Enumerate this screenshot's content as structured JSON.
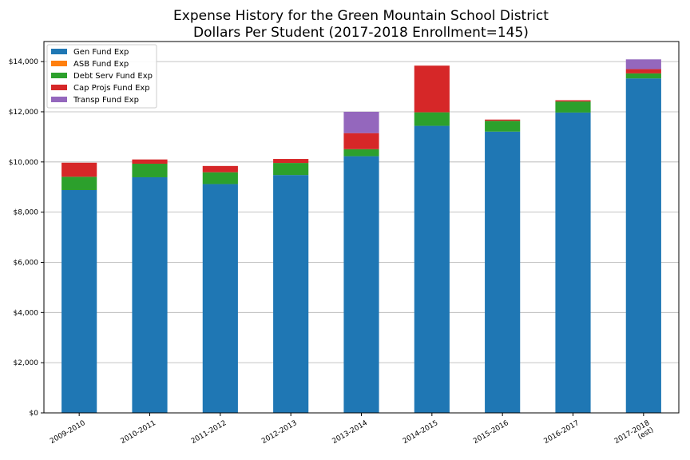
{
  "chart_data": {
    "type": "bar",
    "stacked": true,
    "title_lines": [
      "Expense History for the Green Mountain School District",
      "Dollars Per Student (2017-2018 Enrollment=145)"
    ],
    "categories": [
      [
        "2009-2010"
      ],
      [
        "2010-2011"
      ],
      [
        "2011-2012"
      ],
      [
        "2012-2013"
      ],
      [
        "2013-2014"
      ],
      [
        "2014-2015"
      ],
      [
        "2015-2016"
      ],
      [
        "2016-2017"
      ],
      [
        "2017-2018",
        "(est)"
      ]
    ],
    "series": [
      {
        "name": "Gen Fund Exp",
        "color": "#1f77b4",
        "values": [
          8880,
          9390,
          9120,
          9480,
          10230,
          11440,
          11210,
          11970,
          13330
        ]
      },
      {
        "name": "ASB Fund Exp",
        "color": "#ff7f0e",
        "values": [
          0,
          0,
          0,
          0,
          0,
          0,
          0,
          0,
          0
        ]
      },
      {
        "name": "Debt Serv Fund Exp",
        "color": "#2ca02c",
        "values": [
          530,
          540,
          470,
          480,
          280,
          540,
          430,
          440,
          200
        ]
      },
      {
        "name": "Cap Projs Fund Exp",
        "color": "#d62728",
        "values": [
          560,
          170,
          250,
          160,
          640,
          1860,
          50,
          50,
          170
        ]
      },
      {
        "name": "Transp Fund Exp",
        "color": "#9467bd",
        "values": [
          0,
          0,
          0,
          0,
          850,
          0,
          0,
          0,
          390
        ]
      }
    ],
    "yticks": [
      "$0",
      "$2,000",
      "$4,000",
      "$6,000",
      "$8,000",
      "$10,000",
      "$12,000",
      "$14,000"
    ],
    "ylim": [
      0,
      14800
    ],
    "grid": "horizontal",
    "legend_position": "top-left"
  }
}
